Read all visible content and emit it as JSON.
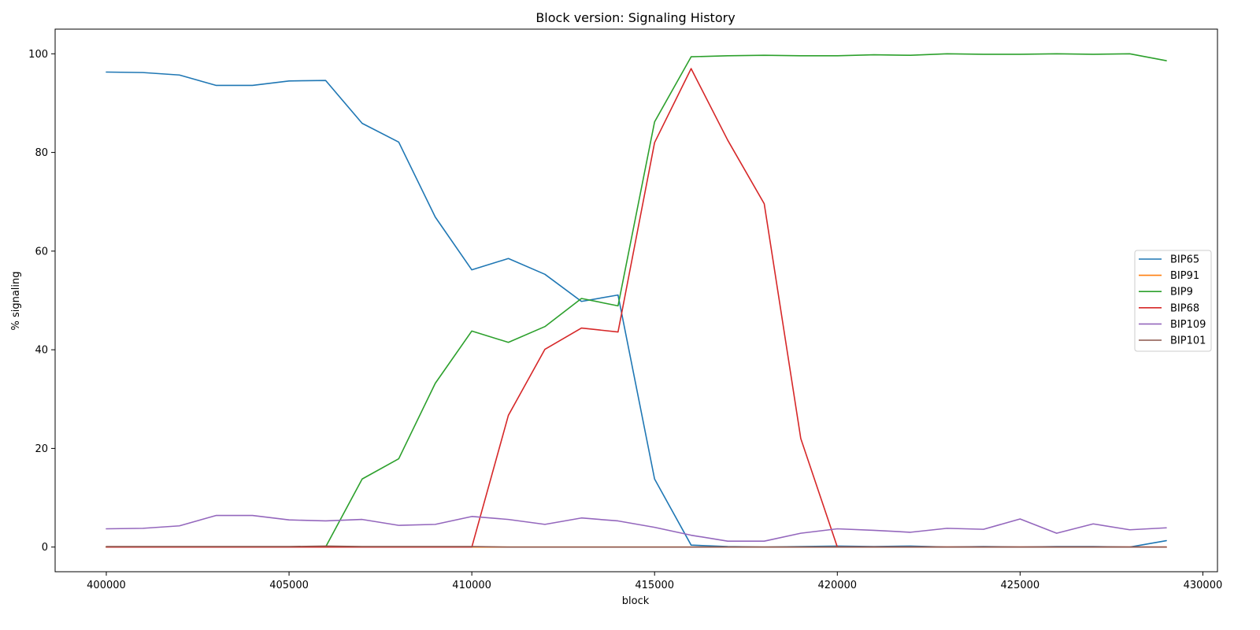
{
  "chart_data": {
    "type": "line",
    "title": "Block version: Signaling History",
    "xlabel": "block",
    "ylabel": "% signaling",
    "xlim": [
      398600,
      430400
    ],
    "ylim": [
      -5,
      105
    ],
    "x_ticks": [
      400000,
      405000,
      410000,
      415000,
      420000,
      425000,
      430000
    ],
    "y_ticks": [
      0,
      20,
      40,
      60,
      80,
      100
    ],
    "grid": false,
    "legend_position": "center-right",
    "x": [
      400000,
      401000,
      402000,
      403000,
      404000,
      405000,
      406000,
      407000,
      408000,
      409000,
      410000,
      411000,
      412000,
      413000,
      414000,
      415000,
      416000,
      417000,
      418000,
      419000,
      420000,
      421000,
      422000,
      423000,
      424000,
      425000,
      426000,
      427000,
      428000,
      429000
    ],
    "series": [
      {
        "name": "BIP65",
        "color": "#1f77b4",
        "values": [
          96.3,
          96.2,
          95.7,
          93.6,
          93.6,
          94.5,
          94.6,
          85.9,
          82.1,
          66.9,
          56.2,
          58.5,
          55.3,
          49.8,
          51.1,
          13.8,
          0.4,
          0.1,
          0.0,
          0.1,
          0.2,
          0.1,
          0.2,
          0.0,
          0.1,
          0.0,
          0.1,
          0.1,
          0.0,
          1.3
        ]
      },
      {
        "name": "BIP91",
        "color": "#ff7f0e",
        "values": [
          0,
          0,
          0,
          0,
          0,
          0,
          0,
          0,
          0,
          0,
          0,
          0,
          0,
          0,
          0,
          0,
          0,
          0,
          0,
          0,
          0,
          0,
          0,
          0,
          0,
          0,
          0,
          0,
          0,
          0
        ]
      },
      {
        "name": "BIP9",
        "color": "#2ca02c",
        "values": [
          0.0,
          0.0,
          0.0,
          0.0,
          0.0,
          0.0,
          0.0,
          13.8,
          17.9,
          33.2,
          43.8,
          41.5,
          44.7,
          50.4,
          48.9,
          86.2,
          99.4,
          99.6,
          99.7,
          99.6,
          99.6,
          99.8,
          99.7,
          100.0,
          99.9,
          99.9,
          100.0,
          99.9,
          100.0,
          98.6
        ]
      },
      {
        "name": "BIP68",
        "color": "#d62728",
        "values": [
          0.0,
          0.0,
          0.0,
          0.0,
          0.0,
          0.0,
          0.0,
          0.0,
          0.0,
          0.0,
          0.0,
          26.7,
          40.1,
          44.4,
          43.6,
          82.0,
          97.0,
          82.5,
          69.6,
          22.0,
          0.0,
          0.0,
          0.0,
          0.0,
          0.0,
          0.0,
          0.0,
          0.0,
          0.0,
          0.0
        ]
      },
      {
        "name": "BIP109",
        "color": "#9467bd",
        "values": [
          3.7,
          3.8,
          4.3,
          6.4,
          6.4,
          5.5,
          5.3,
          5.6,
          4.4,
          4.6,
          6.2,
          5.6,
          4.6,
          5.9,
          5.3,
          4.0,
          2.4,
          1.2,
          1.2,
          2.8,
          3.7,
          3.4,
          3.0,
          3.8,
          3.6,
          5.7,
          2.8,
          4.7,
          3.5,
          3.9
        ]
      },
      {
        "name": "BIP101",
        "color": "#8c564b",
        "values": [
          0.1,
          0.1,
          0.1,
          0.1,
          0.1,
          0.1,
          0.2,
          0.1,
          0.1,
          0.1,
          0.1,
          0.0,
          0.0,
          0.0,
          0.0,
          0.0,
          0.0,
          0.0,
          0.0,
          0.0,
          0.0,
          0.0,
          0.0,
          0.0,
          0.0,
          0.0,
          0.0,
          0.0,
          0.0,
          0.0
        ]
      }
    ]
  }
}
